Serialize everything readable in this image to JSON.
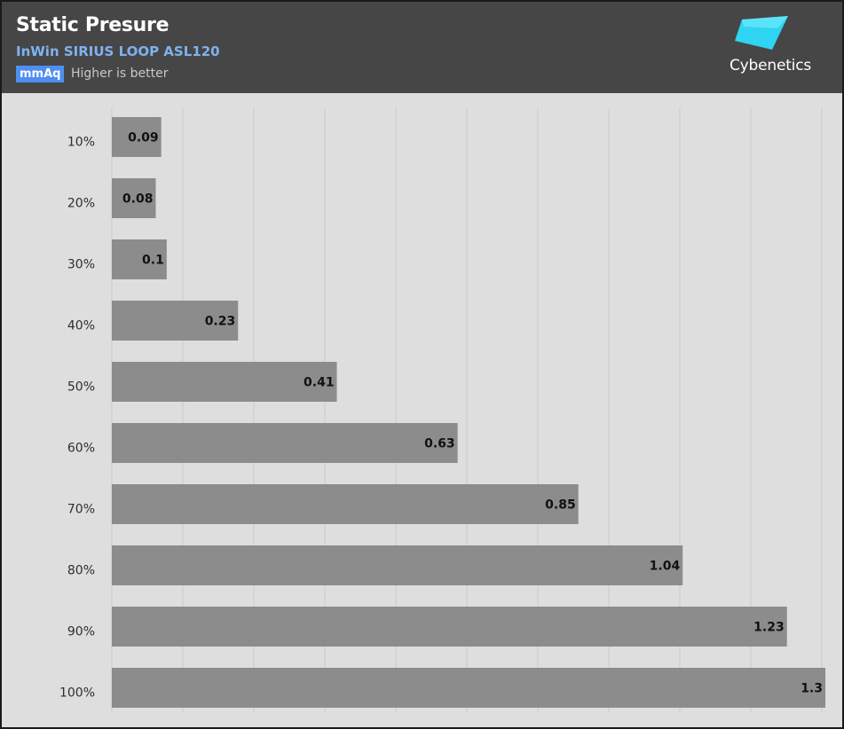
{
  "header": {
    "title": "Static Presure",
    "subtitle": "InWin SIRIUS LOOP ASL120",
    "unit_badge": "mmAq",
    "note": "Higher is better",
    "logo_text": "Cybenetics"
  },
  "colors": {
    "header_bg": "#464646",
    "plot_bg": "#dedede",
    "bar": "#8c8c8c",
    "subtitle": "#7fb2ee",
    "badge": "#4f8ef2",
    "logo_accent": "#2fd4f2"
  },
  "chart_data": {
    "type": "bar",
    "orientation": "horizontal",
    "categories": [
      "10%",
      "20%",
      "30%",
      "40%",
      "50%",
      "60%",
      "70%",
      "80%",
      "90%",
      "100%"
    ],
    "values": [
      0.09,
      0.08,
      0.1,
      0.23,
      0.41,
      0.63,
      0.85,
      1.04,
      1.23,
      1.3
    ],
    "data_labels": [
      "0.09",
      "0.08",
      "0.1",
      "0.23",
      "0.41",
      "0.63",
      "0.85",
      "1.04",
      "1.23",
      "1.3"
    ],
    "xlim": [
      0,
      1.3
    ],
    "grid": true
  }
}
